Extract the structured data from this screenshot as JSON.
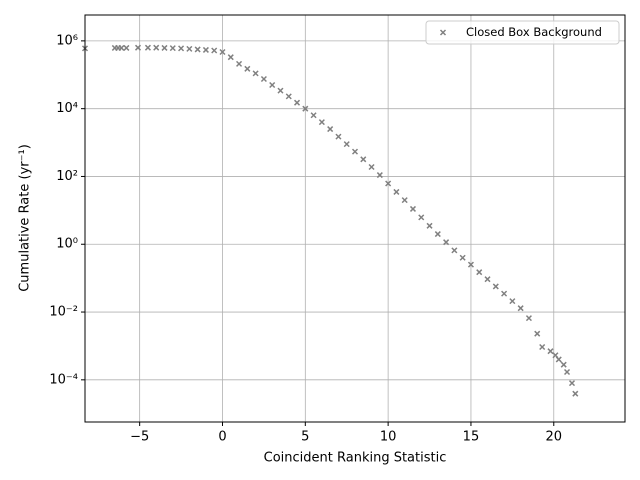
{
  "chart_data": {
    "type": "scatter",
    "xlabel": "Coincident Ranking Statistic",
    "ylabel": "Cumulative Rate (yr⁻¹)",
    "series": [
      {
        "name": "Closed Box Background",
        "color": "#808080",
        "x": [
          -8.3,
          -6.5,
          -6.3,
          -6.1,
          -5.8,
          -5.1,
          -4.5,
          -4,
          -3.5,
          -3,
          -2.5,
          -2,
          -1.5,
          -1,
          -0.5,
          0,
          0.5,
          1,
          1.5,
          2,
          2.5,
          3,
          3.5,
          4,
          4.5,
          5,
          5.5,
          6,
          6.5,
          7,
          7.5,
          8,
          8.5,
          9,
          9.5,
          10,
          10.5,
          11,
          11.5,
          12,
          12.5,
          13,
          13.5,
          14,
          14.5,
          15,
          15.5,
          16,
          16.5,
          17,
          17.5,
          18,
          18.5,
          19,
          19.3,
          19.8,
          20.1,
          20.3,
          20.6,
          20.8,
          21.1,
          21.3
        ],
        "values": [
          600000,
          620000,
          620000,
          620000,
          620000,
          630000,
          630000,
          630000,
          620000,
          610000,
          600000,
          580000,
          560000,
          540000,
          520000,
          470000,
          330000,
          210000,
          150000,
          110000,
          75000,
          50000,
          34000,
          23000,
          15000,
          10000,
          6400,
          4000,
          2500,
          1500,
          900,
          540,
          320,
          190,
          110,
          62,
          35,
          20,
          11,
          6.2,
          3.5,
          2,
          1.15,
          0.66,
          0.4,
          0.25,
          0.15,
          0.093,
          0.057,
          0.035,
          0.021,
          0.013,
          0.0066,
          0.0023,
          0.00093,
          0.0007,
          0.00053,
          0.0004,
          0.00028,
          0.00017,
          8e-05,
          3.9e-05
        ]
      }
    ],
    "xlim": [
      -8.3,
      24.3
    ],
    "xticks": [
      {
        "value": -5,
        "label": "−5"
      },
      0,
      5,
      10,
      15,
      20
    ],
    "ylim": [
      5.7e-06,
      5800000
    ],
    "yticks": [
      {
        "value": 0.0001,
        "label": "10⁻⁴"
      },
      {
        "value": 0.01,
        "label": "10⁻²"
      },
      {
        "value": 1,
        "label": "10⁰"
      },
      {
        "value": 100,
        "label": "10²"
      },
      {
        "value": 10000,
        "label": "10⁴"
      },
      {
        "value": 1000000,
        "label": "10⁶"
      }
    ],
    "log_y": true,
    "grid": true,
    "legend": "upper right"
  }
}
